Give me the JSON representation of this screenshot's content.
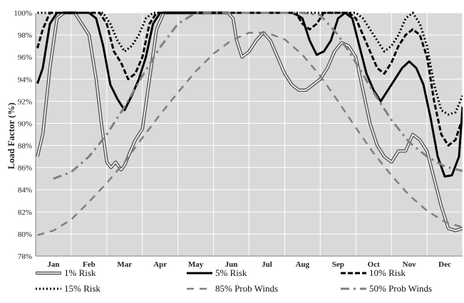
{
  "chart_data": {
    "type": "line",
    "title": "",
    "xlabel": "",
    "ylabel": "Load Factor (%)",
    "ylim": [
      78,
      100
    ],
    "yticks": [
      "78%",
      "80%",
      "82%",
      "84%",
      "86%",
      "88%",
      "90%",
      "92%",
      "94%",
      "96%",
      "98%",
      "100%"
    ],
    "categories": [
      "Jan",
      "Feb",
      "Mar",
      "Apr",
      "May",
      "Jun",
      "Jul",
      "Aug",
      "Sep",
      "Oct",
      "Nov",
      "Dec"
    ],
    "grid": true,
    "plot_background": "#d9d9d9",
    "legend_position": "bottom",
    "x_range": [
      0.5,
      12.5
    ],
    "series": [
      {
        "name": "1% Risk",
        "style": "double",
        "color": "#595959",
        "x": [
          0.55,
          0.7,
          0.9,
          1.1,
          1.3,
          1.5,
          1.6,
          1.8,
          2.0,
          2.2,
          2.35,
          2.5,
          2.62,
          2.75,
          2.9,
          3.0,
          3.1,
          3.3,
          3.5,
          3.7,
          3.9,
          4.1,
          4.3,
          4.6,
          5.0,
          5.5,
          5.9,
          6.05,
          6.15,
          6.3,
          6.5,
          6.7,
          6.9,
          7.1,
          7.3,
          7.5,
          7.7,
          7.9,
          8.1,
          8.3,
          8.5,
          8.7,
          8.9,
          9.1,
          9.3,
          9.5,
          9.7,
          9.9,
          10.1,
          10.3,
          10.5,
          10.7,
          10.9,
          11.1,
          11.3,
          11.5,
          11.7,
          11.9,
          12.1,
          12.3,
          12.5
        ],
        "y": [
          87.0,
          89.0,
          95.0,
          99.5,
          100,
          100,
          100,
          99.0,
          98.0,
          94.0,
          90.0,
          86.5,
          86.0,
          86.5,
          85.8,
          86.2,
          87.0,
          88.5,
          89.5,
          94.0,
          98.5,
          100,
          100,
          100,
          100,
          100,
          100,
          99.5,
          97.5,
          96.0,
          96.5,
          97.5,
          98.2,
          97.5,
          96.0,
          94.5,
          93.5,
          93.0,
          93.0,
          93.5,
          94.0,
          95.0,
          96.5,
          97.3,
          97.0,
          96.0,
          93.0,
          90.0,
          88.0,
          87.0,
          86.5,
          87.5,
          87.5,
          89.0,
          88.5,
          87.5,
          85.0,
          82.5,
          80.5,
          80.3,
          80.5
        ]
      },
      {
        "name": "5% Risk",
        "style": "solid",
        "color": "#000000",
        "x": [
          0.55,
          0.7,
          0.9,
          1.1,
          1.3,
          1.5,
          1.6,
          1.8,
          2.0,
          2.2,
          2.4,
          2.6,
          2.8,
          3.0,
          3.2,
          3.4,
          3.6,
          3.8,
          4.0,
          4.5,
          5.0,
          5.5,
          6.0,
          6.5,
          7.0,
          7.5,
          7.75,
          8.0,
          8.2,
          8.4,
          8.6,
          8.8,
          9.0,
          9.2,
          9.4,
          9.6,
          9.8,
          10.0,
          10.2,
          10.4,
          10.6,
          10.8,
          11.0,
          11.2,
          11.4,
          11.6,
          11.8,
          12.0,
          12.2,
          12.4,
          12.5
        ],
        "y": [
          93.6,
          95.0,
          99.0,
          100,
          100,
          100,
          100,
          100,
          100,
          99.5,
          97.0,
          93.5,
          92.2,
          91.2,
          92.5,
          94.0,
          96.0,
          99.0,
          100,
          100,
          100,
          100,
          100,
          100,
          100,
          100,
          100,
          99.5,
          97.5,
          96.2,
          96.5,
          97.5,
          99.5,
          100,
          99.5,
          97.0,
          94.5,
          93.0,
          92.0,
          93.0,
          94.0,
          95.0,
          95.6,
          95.0,
          93.5,
          90.5,
          87.0,
          85.2,
          85.3,
          87.0,
          91.5
        ]
      },
      {
        "name": "10% Risk",
        "style": "dashed",
        "color": "#000000",
        "x": [
          0.55,
          0.7,
          0.9,
          1.1,
          1.4,
          1.7,
          2.0,
          2.3,
          2.5,
          2.7,
          2.9,
          3.1,
          3.3,
          3.5,
          3.7,
          3.9,
          4.2,
          5.0,
          6.0,
          7.0,
          7.7,
          7.85,
          8.0,
          8.2,
          8.4,
          8.6,
          9.0,
          9.3,
          9.5,
          9.7,
          9.9,
          10.1,
          10.3,
          10.5,
          10.7,
          10.9,
          11.1,
          11.3,
          11.5,
          11.7,
          11.9,
          12.1,
          12.3,
          12.5
        ],
        "y": [
          96.8,
          98.5,
          100,
          100,
          100,
          100,
          100,
          100,
          99.0,
          96.5,
          95.5,
          94.0,
          94.5,
          96.0,
          99.0,
          100,
          100,
          100,
          100,
          100,
          100,
          99.8,
          99.0,
          98.5,
          99.0,
          100,
          100,
          100,
          99.5,
          98.0,
          96.5,
          95.0,
          94.5,
          95.5,
          97.0,
          98.0,
          98.5,
          98.0,
          96.0,
          92.0,
          89.0,
          88.0,
          88.5,
          90.5
        ]
      },
      {
        "name": "15% Risk",
        "style": "dotted",
        "color": "#000000",
        "x": [
          0.55,
          1.0,
          1.5,
          2.0,
          2.4,
          2.6,
          2.8,
          3.0,
          3.2,
          3.4,
          3.6,
          3.8,
          4.0,
          5.0,
          6.0,
          7.0,
          8.0,
          8.5,
          9.0,
          9.5,
          9.7,
          9.9,
          10.1,
          10.3,
          10.5,
          10.7,
          10.9,
          11.1,
          11.3,
          11.5,
          11.7,
          11.9,
          12.1,
          12.3,
          12.5
        ],
        "y": [
          100,
          100,
          100,
          100,
          100,
          99.0,
          97.5,
          96.5,
          97.0,
          98.0,
          99.5,
          100,
          100,
          100,
          100,
          100,
          100,
          100,
          100,
          100,
          99.5,
          98.5,
          97.5,
          96.5,
          97.0,
          98.0,
          99.5,
          100,
          99.0,
          97.0,
          93.5,
          91.2,
          90.8,
          91.0,
          92.5
        ]
      },
      {
        "name": "85% Prob Winds",
        "style": "long-dash",
        "color": "#7f7f7f",
        "x": [
          0.55,
          1.0,
          1.5,
          2.0,
          2.5,
          3.0,
          3.5,
          4.0,
          4.5,
          5.0,
          5.5,
          6.0,
          6.5,
          7.0,
          7.5,
          8.0,
          8.5,
          9.0,
          9.5,
          10.0,
          10.5,
          11.0,
          11.5,
          12.0,
          12.5
        ],
        "y": [
          79.9,
          80.3,
          81.3,
          82.9,
          84.6,
          86.5,
          88.7,
          90.8,
          92.8,
          94.7,
          96.3,
          97.5,
          98.2,
          98.2,
          97.6,
          96.2,
          94.3,
          92.0,
          89.6,
          87.3,
          85.3,
          83.5,
          82.1,
          81.1,
          80.6
        ]
      },
      {
        "name": "50% Prob Winds",
        "style": "dash-dot",
        "color": "#7f7f7f",
        "x": [
          1.0,
          1.5,
          2.0,
          2.5,
          3.0,
          3.5,
          4.0,
          4.5,
          5.0,
          5.5,
          6.0,
          6.5,
          7.0,
          7.5,
          8.0,
          8.5,
          9.0,
          9.5,
          10.0,
          10.5,
          11.0,
          11.5,
          12.0,
          12.5
        ],
        "y": [
          85.0,
          85.6,
          87.0,
          89.0,
          91.5,
          94.3,
          96.9,
          99.0,
          100,
          100,
          100,
          100,
          100,
          100,
          100,
          99.8,
          98.0,
          95.5,
          92.8,
          90.3,
          88.3,
          87.0,
          86.1,
          85.7
        ]
      }
    ]
  }
}
